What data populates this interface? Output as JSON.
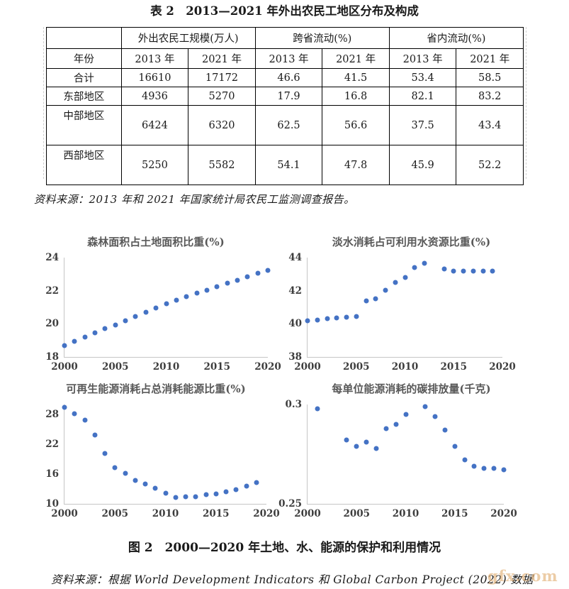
{
  "page": {
    "table_title": "表 2　2013—2021 年外出农民工地区分布及构成",
    "table_source": "资料来源：2013 年和 2021 年国家统计局农民工监测调查报告。",
    "figure_caption": "图 2　2000—2020 年土地、水、能源的保护和利用情况",
    "figure_source": "资料来源：根据 World Development Indicators 和 Global Carbon Project (2022) 数据",
    "watermark": "gfx.com"
  },
  "table": {
    "col_groups": [
      "外出农民工规模(万人)",
      "跨省流动(%)",
      "省内流动(%)"
    ],
    "year_header": "年份",
    "year_cols": [
      "2013 年",
      "2021 年",
      "2013 年",
      "2021 年",
      "2013 年",
      "2021 年"
    ],
    "rows": [
      {
        "label": "合计",
        "values": [
          "16610",
          "17172",
          "46.6",
          "41.5",
          "53.4",
          "58.5"
        ]
      },
      {
        "label": "东部地区",
        "values": [
          "4936",
          "5270",
          "17.9",
          "16.8",
          "82.1",
          "83.2"
        ]
      },
      {
        "label": "中部地区",
        "values": [
          "6424",
          "6320",
          "62.5",
          "56.6",
          "37.5",
          "43.4"
        ]
      },
      {
        "label": "西部地区",
        "values": [
          "5250",
          "5582",
          "54.1",
          "47.8",
          "45.9",
          "52.2"
        ]
      }
    ]
  },
  "chart_data": [
    {
      "type": "scatter",
      "title": "森林面积占土地面积比重(%)",
      "xlabel": "",
      "ylabel": "",
      "xlim": [
        2000,
        2020
      ],
      "ylim": [
        18,
        24
      ],
      "xticks": [
        2000,
        2005,
        2010,
        2015,
        2020
      ],
      "yticks": [
        18,
        20,
        22,
        24
      ],
      "grid": false,
      "legend": "none",
      "x": [
        2000,
        2001,
        2002,
        2003,
        2004,
        2005,
        2006,
        2007,
        2008,
        2009,
        2010,
        2011,
        2012,
        2013,
        2014,
        2015,
        2016,
        2017,
        2018,
        2019,
        2020
      ],
      "y": [
        18.7,
        18.95,
        19.2,
        19.45,
        19.7,
        19.95,
        20.2,
        20.45,
        20.7,
        20.95,
        21.2,
        21.45,
        21.65,
        21.85,
        22.05,
        22.25,
        22.45,
        22.65,
        22.85,
        23.05,
        23.25
      ]
    },
    {
      "type": "scatter",
      "title": "淡水消耗占可利用水资源比重(%)",
      "xlabel": "",
      "ylabel": "",
      "xlim": [
        2000,
        2020
      ],
      "ylim": [
        38,
        44
      ],
      "xticks": [
        2000,
        2005,
        2010,
        2015,
        2020
      ],
      "yticks": [
        38,
        40,
        42,
        44
      ],
      "grid": false,
      "legend": "none",
      "x": [
        2000,
        2001,
        2002,
        2003,
        2004,
        2005,
        2006,
        2007,
        2008,
        2009,
        2010,
        2011,
        2012,
        2014,
        2015,
        2016,
        2017,
        2018,
        2019
      ],
      "y": [
        40.2,
        40.25,
        40.3,
        40.35,
        40.4,
        40.45,
        41.4,
        41.5,
        42.05,
        42.5,
        42.8,
        43.4,
        43.65,
        43.3,
        43.2,
        43.2,
        43.2,
        43.2,
        43.2
      ]
    },
    {
      "type": "scatter",
      "title": "可再生能源消耗占总消耗能源比重(%)",
      "xlabel": "",
      "ylabel": "",
      "xlim": [
        2000,
        2020
      ],
      "ylim": [
        10,
        30
      ],
      "xticks": [
        2000,
        2005,
        2010,
        2015,
        2020
      ],
      "yticks": [
        10,
        16,
        22,
        28
      ],
      "grid": false,
      "legend": "none",
      "x": [
        2000,
        2001,
        2002,
        2003,
        2004,
        2005,
        2006,
        2007,
        2008,
        2009,
        2010,
        2011,
        2012,
        2013,
        2014,
        2015,
        2016,
        2017,
        2018,
        2019
      ],
      "y": [
        29.4,
        28.1,
        26.8,
        23.9,
        20.1,
        17.3,
        16.1,
        14.7,
        14.0,
        13.2,
        12.1,
        11.3,
        11.5,
        11.4,
        11.9,
        12.0,
        12.5,
        12.9,
        13.6,
        14.3
      ]
    },
    {
      "type": "scatter",
      "title": "每单位能源消耗的碳排放量(千克)",
      "xlabel": "",
      "ylabel": "",
      "xlim": [
        2000,
        2020
      ],
      "ylim": [
        0.25,
        0.3
      ],
      "xticks": [
        2000,
        2005,
        2010,
        2015,
        2020
      ],
      "yticks": [
        0.25,
        0.3
      ],
      "grid": false,
      "legend": "none",
      "x": [
        2001,
        2004,
        2005,
        2006,
        2007,
        2008,
        2009,
        2010,
        2012,
        2013,
        2014,
        2015,
        2016,
        2017,
        2018,
        2019,
        2020
      ],
      "y": [
        0.298,
        0.282,
        0.279,
        0.281,
        0.278,
        0.288,
        0.29,
        0.295,
        0.299,
        0.294,
        0.287,
        0.279,
        0.272,
        0.269,
        0.268,
        0.268,
        0.267
      ]
    }
  ],
  "colors": {
    "dot": "#4472c4",
    "axis_line": "#c6c6c6",
    "chart_title": "#595959",
    "tick_label": "#3d3d3d",
    "watermark": "#e2b076"
  }
}
